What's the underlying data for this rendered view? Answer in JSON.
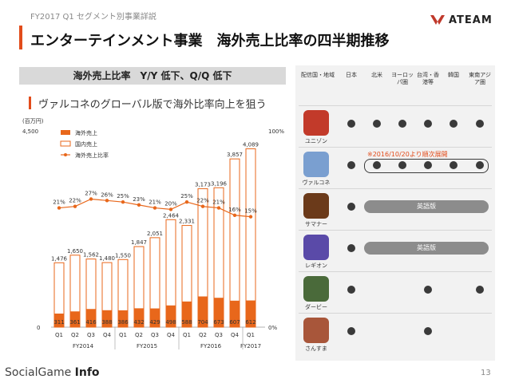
{
  "header": {
    "subtitle": "FY2017 Q1 セグメント別事業詳説",
    "title": "エンターテインメント事業　海外売上比率の四半期推移",
    "logo_text": "ATEAM"
  },
  "left": {
    "header_box": "海外売上比率　Y/Y 低下、Q/Q 低下",
    "subhead": "ヴァルコネのグローバル版で海外比率向上を狙う"
  },
  "chart_data": {
    "type": "bar",
    "yunit": "(百万円)",
    "y_left_ticks": [
      "4,500",
      "0"
    ],
    "y_right_ticks": [
      "100%",
      "0%"
    ],
    "ylim": [
      0,
      4500
    ],
    "legend": [
      "海外売上",
      "国内売上",
      "海外売上比率"
    ],
    "categories": [
      "Q1",
      "Q2",
      "Q3",
      "Q4",
      "Q1",
      "Q2",
      "Q3",
      "Q4",
      "Q1",
      "Q2",
      "Q3",
      "Q4",
      "Q1"
    ],
    "year_groups": [
      {
        "label": "FY2014",
        "count": 4
      },
      {
        "label": "FY2015",
        "count": 4
      },
      {
        "label": "FY2016",
        "count": 4
      },
      {
        "label": "FY2017",
        "count": 1
      }
    ],
    "total_labels": [
      "1,476",
      "1,650",
      "1,562",
      "1,480",
      "1,550",
      "1,847",
      "2,051",
      "2,464",
      "2,331",
      "3,173",
      "3,196",
      "3,857",
      "4,089"
    ],
    "totals": [
      1476,
      1650,
      1562,
      1480,
      1550,
      1847,
      2051,
      2464,
      2331,
      3173,
      3196,
      3857,
      4089
    ],
    "overseas_labels": [
      "311",
      "361",
      "416",
      "388",
      "386",
      "432",
      "429",
      "498",
      "588",
      "704",
      "673",
      "607",
      "612"
    ],
    "overseas": [
      311,
      361,
      416,
      388,
      386,
      432,
      429,
      498,
      588,
      704,
      673,
      607,
      612
    ],
    "ratio_labels": [
      "21%",
      "22%",
      "27%",
      "26%",
      "25%",
      "23%",
      "21%",
      "20%",
      "25%",
      "22%",
      "21%",
      "16%",
      "15%"
    ],
    "ratio": [
      21,
      22,
      27,
      26,
      25,
      23,
      21,
      20,
      25,
      22,
      21,
      16,
      15
    ],
    "colors": {
      "overseas": "#e8671b",
      "domestic_border": "#e8671b",
      "line": "#e8671b"
    }
  },
  "right": {
    "columns": [
      "配信国・地域",
      "日本",
      "北米",
      "ヨーロッパ圏",
      "台湾・香港等",
      "韓国",
      "東南アジア圏"
    ],
    "apps": [
      {
        "name": "ユニゾン",
        "icon": "unison-app-icon",
        "color": "#c23a2a"
      },
      {
        "name": "ヴァルコネ",
        "icon": "valcone-app-icon",
        "color": "#7a9fd0"
      },
      {
        "name": "サマナー",
        "icon": "summoner-app-icon",
        "color": "#6b3a1a"
      },
      {
        "name": "レギオン",
        "icon": "legion-app-icon",
        "color": "#5a4aa8"
      },
      {
        "name": "ダービー",
        "icon": "derby-app-icon",
        "color": "#4a6a3a"
      },
      {
        "name": "さんすま",
        "icon": "sansuma-app-icon",
        "color": "#a8563a"
      }
    ],
    "valcone_note": "※2016/10/20より順次展開",
    "english_label": "英語版"
  },
  "footer": {
    "brand_prefix": "Social",
    "brand_mid": "Game",
    "brand_suffix": "Info",
    "page": "13"
  }
}
